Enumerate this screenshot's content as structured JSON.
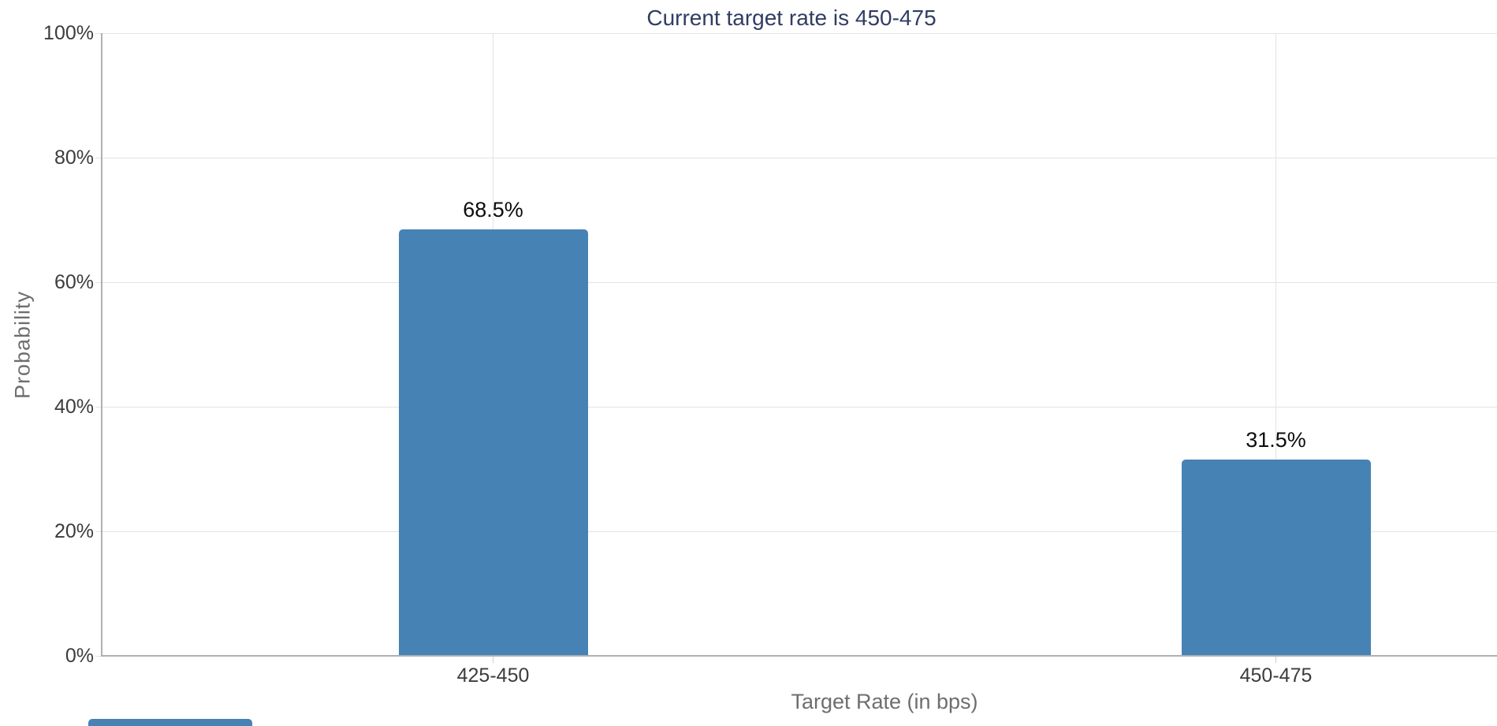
{
  "chart_data": {
    "type": "bar",
    "title": "Current target rate is 450-475",
    "categories": [
      "425-450",
      "450-475"
    ],
    "values": [
      68.5,
      31.5
    ],
    "bar_labels": [
      "68.5%",
      "31.5%"
    ],
    "xlabel": "Target Rate (in bps)",
    "ylabel": "Probability",
    "ylim": [
      0,
      100
    ],
    "yticks": [
      {
        "label": "0%",
        "value": 0
      },
      {
        "label": "20%",
        "value": 20
      },
      {
        "label": "40%",
        "value": 40
      },
      {
        "label": "60%",
        "value": 60
      },
      {
        "label": "80%",
        "value": 80
      },
      {
        "label": "100%",
        "value": 100
      }
    ],
    "grid": true,
    "legend": false,
    "colors": {
      "bar": "#4682b4",
      "title": "#303d63",
      "tick_label": "#3c3c3c",
      "value_label": "#0d0d0d",
      "axis_title": "#6e6e6e",
      "gridline": "#e3e3e3",
      "spine": "#b0b0b0",
      "tick_mark": "#cfcfcf"
    }
  }
}
